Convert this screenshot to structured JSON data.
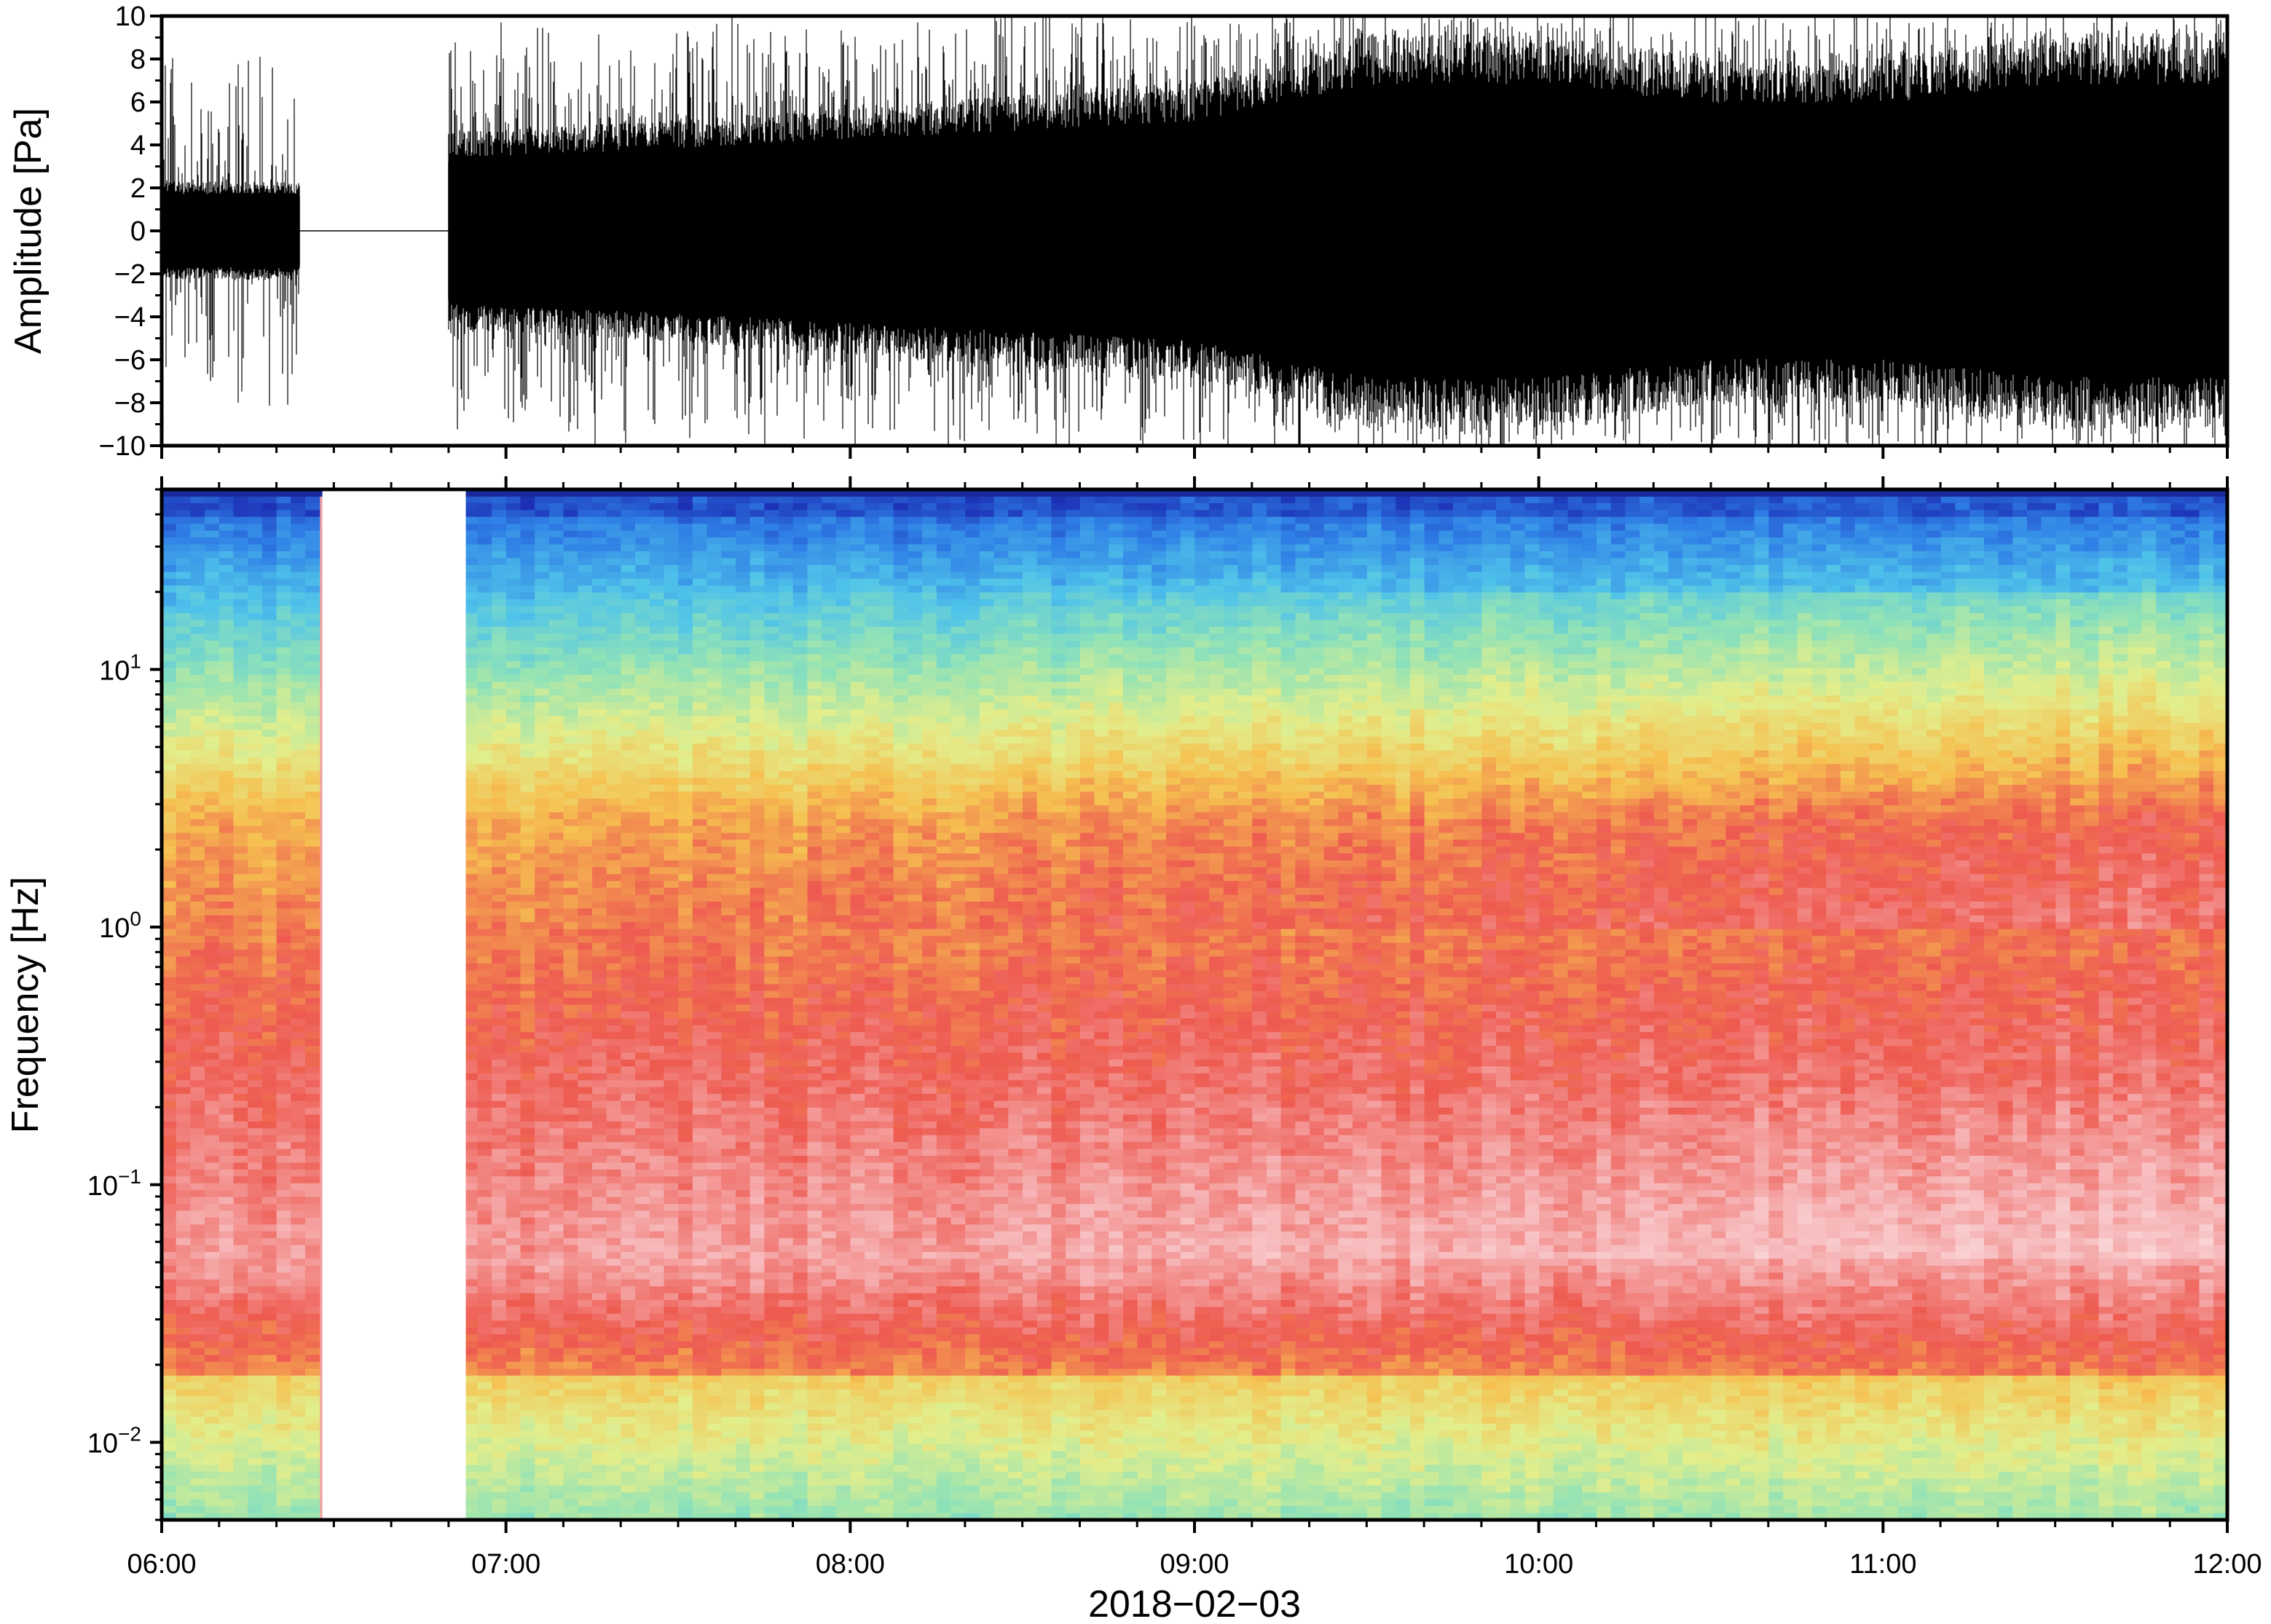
{
  "chart_data": [
    {
      "type": "line",
      "panel": "waveform",
      "ylabel": "Amplitude [Pa]",
      "ylim": [
        -10,
        10
      ],
      "yticks": [
        10,
        8,
        6,
        4,
        2,
        0,
        -2,
        -4,
        -6,
        -8,
        -10
      ],
      "ytick_labels": [
        "10",
        "8",
        "6",
        "4",
        "2",
        "0",
        "−2",
        "−4",
        "−6",
        "−8",
        "−10"
      ],
      "xlim": [
        "06:00",
        "12:00"
      ],
      "data_gap": [
        "06:24",
        "06:50"
      ],
      "envelope": {
        "x": [
          "06:00",
          "06:24",
          "06:50",
          "07:30",
          "08:00",
          "08:30",
          "09:00",
          "09:30",
          "10:00",
          "10:30",
          "11:00",
          "11:30",
          "12:00"
        ],
        "typical_abs": [
          2,
          2,
          4,
          4.5,
          5,
          5.5,
          6,
          8,
          8,
          7,
          7,
          8,
          8
        ],
        "peak_abs": [
          8,
          8,
          9,
          9.5,
          9.5,
          10,
          10,
          10,
          10,
          10,
          10,
          10,
          10
        ]
      },
      "color": "#000000"
    },
    {
      "type": "heatmap",
      "panel": "spectrogram",
      "ylabel": "Frequency [Hz]",
      "yscale": "log",
      "ylim": [
        0.005,
        50
      ],
      "yticks": [
        10,
        1,
        0.1,
        0.01
      ],
      "ytick_labels": [
        {
          "base": "10",
          "exp": "1"
        },
        {
          "base": "10",
          "exp": "0"
        },
        {
          "base": "10",
          "exp": "−1"
        },
        {
          "base": "10",
          "exp": "−2"
        }
      ],
      "xlim": [
        "06:00",
        "12:00"
      ],
      "data_gap": [
        "06:28",
        "06:53"
      ],
      "colormap": [
        "#1c2fb5",
        "#2f7fe6",
        "#4fc3ea",
        "#8fe2b8",
        "#e2ee8c",
        "#f6c050",
        "#ee5a50",
        "#f6b4b6",
        "#fde8e8"
      ]
    }
  ],
  "x_axis": {
    "tick_labels": [
      "06:00",
      "07:00",
      "08:00",
      "09:00",
      "10:00",
      "11:00",
      "12:00"
    ],
    "date_label": "2018−02−03"
  }
}
